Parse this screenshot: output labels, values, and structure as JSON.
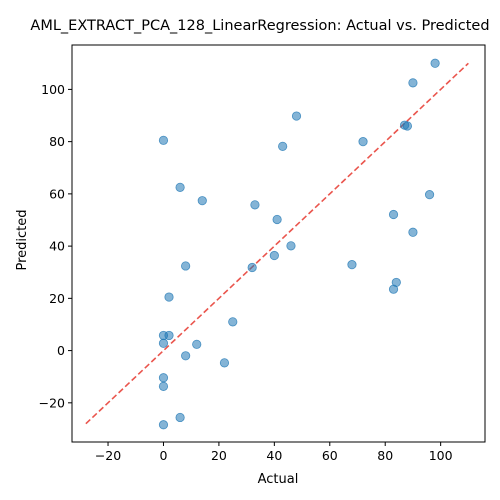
{
  "chart_data": {
    "type": "scatter",
    "title": "AML_EXTRACT_PCA_128_LinearRegression: Actual vs. Predicted",
    "xlabel": "Actual",
    "ylabel": "Predicted",
    "xlim": [
      -33,
      116
    ],
    "ylim": [
      -35,
      117
    ],
    "xticks": [
      -20,
      0,
      20,
      40,
      60,
      80,
      100
    ],
    "yticks": [
      -20,
      0,
      20,
      40,
      60,
      80,
      100
    ],
    "grid": false,
    "reference_line": {
      "from": [
        -28,
        -28
      ],
      "to": [
        110,
        110
      ],
      "color": "#e8423a",
      "style": "dashed"
    },
    "point_color": "#1f77b4",
    "points": [
      {
        "x": 98,
        "y": 110
      },
      {
        "x": 90,
        "y": 102.5
      },
      {
        "x": 48,
        "y": 89.8
      },
      {
        "x": 87,
        "y": 86.3
      },
      {
        "x": 88,
        "y": 86
      },
      {
        "x": 0,
        "y": 80.5
      },
      {
        "x": 72,
        "y": 80
      },
      {
        "x": 43,
        "y": 78.2
      },
      {
        "x": 6,
        "y": 62.5
      },
      {
        "x": 96,
        "y": 59.7
      },
      {
        "x": 14,
        "y": 57.4
      },
      {
        "x": 33,
        "y": 55.8
      },
      {
        "x": 83,
        "y": 52.1
      },
      {
        "x": 41,
        "y": 50.2
      },
      {
        "x": 90,
        "y": 45.3
      },
      {
        "x": 46,
        "y": 40.1
      },
      {
        "x": 40,
        "y": 36.4
      },
      {
        "x": 8,
        "y": 32.4
      },
      {
        "x": 32,
        "y": 31.8
      },
      {
        "x": 68,
        "y": 32.9
      },
      {
        "x": 84,
        "y": 26.1
      },
      {
        "x": 83,
        "y": 23.5
      },
      {
        "x": 2,
        "y": 20.5
      },
      {
        "x": 25,
        "y": 11
      },
      {
        "x": 0,
        "y": 5.8
      },
      {
        "x": 2,
        "y": 5.8
      },
      {
        "x": 0,
        "y": 2.8
      },
      {
        "x": 12,
        "y": 2.4
      },
      {
        "x": 8,
        "y": -2
      },
      {
        "x": 22,
        "y": -4.7
      },
      {
        "x": 0,
        "y": -10.4
      },
      {
        "x": 0,
        "y": -13.7
      },
      {
        "x": 6,
        "y": -25.6
      },
      {
        "x": 0,
        "y": -28.4
      }
    ]
  }
}
